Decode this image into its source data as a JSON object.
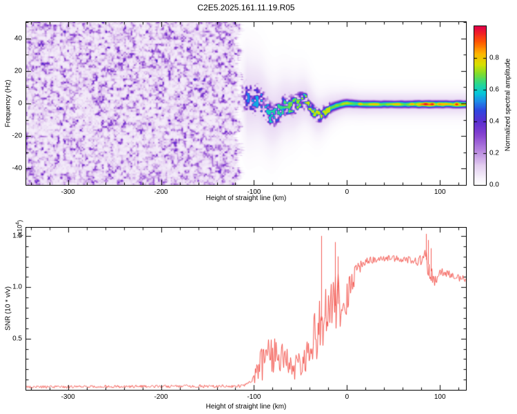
{
  "title": "C2E5.2025.161.11.19.R05",
  "background_color": "#ffffff",
  "chart_data": [
    {
      "type": "heatmap",
      "panel": "spectrogram",
      "xlabel": "Height of straight line (km)",
      "ylabel": "Frequency (Hz)",
      "xlim": [
        -345,
        128
      ],
      "ylim": [
        -50,
        50
      ],
      "xticks": [
        -300,
        -200,
        -100,
        0,
        100
      ],
      "yticks": [
        -40,
        -20,
        0,
        20,
        40
      ],
      "x_minor_step": 20,
      "y_minor_step": 10,
      "colorbar": {
        "label": "Normalized spectral amplitude",
        "ticks": [
          0.0,
          0.2,
          0.4,
          0.6,
          0.8
        ],
        "range": [
          0,
          1
        ]
      },
      "colormap": [
        [
          0.0,
          "#ffffff"
        ],
        [
          0.04,
          "#f7f2fb"
        ],
        [
          0.12,
          "#e3cdf0"
        ],
        [
          0.22,
          "#b482de"
        ],
        [
          0.32,
          "#8440cf"
        ],
        [
          0.4,
          "#5a2fd0"
        ],
        [
          0.47,
          "#2f48e0"
        ],
        [
          0.53,
          "#1e8fe8"
        ],
        [
          0.58,
          "#06c8d8"
        ],
        [
          0.64,
          "#2bd88c"
        ],
        [
          0.7,
          "#7fdc2e"
        ],
        [
          0.76,
          "#d8e000"
        ],
        [
          0.83,
          "#ffb300"
        ],
        [
          0.9,
          "#ff5a00"
        ],
        [
          0.96,
          "#f01e28"
        ],
        [
          1.0,
          "#e00048"
        ]
      ],
      "noise_region": {
        "x_start": -345,
        "x_end": -113,
        "background_level": 0.05,
        "speckle_peak": 0.45
      },
      "signal_band": {
        "x_start": -113,
        "x_end": 128,
        "center_hz": -0.5,
        "wander_amplitude_hz": 5,
        "width_hz_wide": 8,
        "width_hz_narrow": 2.2,
        "tighten_at_x": -20,
        "amplitude_min": 0.5,
        "amplitude_plateau": 0.75,
        "hotspots": [
          {
            "x": 2,
            "boost": 0.08,
            "sigma": 5
          },
          {
            "x": 55,
            "boost": 0.05,
            "sigma": 6
          },
          {
            "x": 85,
            "boost": 0.18,
            "sigma": 16
          },
          {
            "x": 120,
            "boost": 0.13,
            "sigma": 8
          }
        ]
      }
    },
    {
      "type": "line",
      "panel": "snr",
      "xlabel": "Height of straight line (km)",
      "ylabel": "SNR (10 * v/v)",
      "scale_prefix": "(x10",
      "scale_exponent": "4",
      "scale_suffix": ")",
      "xlim": [
        -345,
        128
      ],
      "ylim": [
        0,
        1.58
      ],
      "xticks": [
        -300,
        -200,
        -100,
        0,
        100
      ],
      "yticks": [
        0.5,
        1.0,
        1.5
      ],
      "x_minor_step": 20,
      "y_minor_step": 0.1,
      "color": "#f2473f",
      "envelope": [
        [
          -345,
          0.015,
          0.04
        ],
        [
          -200,
          0.02,
          0.05
        ],
        [
          -150,
          0.02,
          0.05
        ],
        [
          -120,
          0.02,
          0.05
        ],
        [
          -110,
          0.02,
          0.06
        ],
        [
          -104,
          0.03,
          0.09
        ],
        [
          -100,
          0.04,
          0.18
        ],
        [
          -96,
          0.05,
          0.3
        ],
        [
          -92,
          0.08,
          0.5
        ],
        [
          -88,
          0.1,
          0.45
        ],
        [
          -84,
          0.12,
          0.55
        ],
        [
          -80,
          0.12,
          0.5
        ],
        [
          -76,
          0.15,
          0.55
        ],
        [
          -72,
          0.12,
          0.5
        ],
        [
          -68,
          0.1,
          0.45
        ],
        [
          -64,
          0.1,
          0.42
        ],
        [
          -60,
          0.1,
          0.38
        ],
        [
          -56,
          0.1,
          0.34
        ],
        [
          -52,
          0.12,
          0.36
        ],
        [
          -48,
          0.15,
          0.4
        ],
        [
          -44,
          0.18,
          0.45
        ],
        [
          -40,
          0.2,
          0.55
        ],
        [
          -36,
          0.25,
          0.7
        ],
        [
          -32,
          0.3,
          0.85
        ],
        [
          -28,
          0.35,
          1.0
        ],
        [
          -24,
          0.4,
          1.0
        ],
        [
          -20,
          0.45,
          1.05
        ],
        [
          -16,
          0.5,
          1.1
        ],
        [
          -12,
          0.5,
          1.15
        ],
        [
          -8,
          0.55,
          1.15
        ],
        [
          -4,
          0.6,
          1.1
        ],
        [
          0,
          0.7,
          1.15
        ],
        [
          4,
          0.9,
          1.18
        ],
        [
          8,
          1.0,
          1.2
        ],
        [
          12,
          1.1,
          1.24
        ],
        [
          16,
          1.17,
          1.27
        ],
        [
          20,
          1.2,
          1.29
        ],
        [
          26,
          1.23,
          1.3
        ],
        [
          34,
          1.24,
          1.31
        ],
        [
          42,
          1.25,
          1.31
        ],
        [
          50,
          1.25,
          1.32
        ],
        [
          58,
          1.24,
          1.31
        ],
        [
          66,
          1.23,
          1.3
        ],
        [
          74,
          1.21,
          1.29
        ],
        [
          80,
          1.2,
          1.33
        ],
        [
          84,
          1.18,
          1.4
        ],
        [
          88,
          1.1,
          1.3
        ],
        [
          92,
          1.02,
          1.2
        ],
        [
          96,
          1.0,
          1.14
        ],
        [
          100,
          1.08,
          1.2
        ],
        [
          105,
          1.1,
          1.18
        ],
        [
          110,
          1.08,
          1.16
        ],
        [
          115,
          1.07,
          1.14
        ],
        [
          120,
          1.06,
          1.13
        ],
        [
          125,
          1.05,
          1.12
        ],
        [
          128,
          1.04,
          1.11
        ]
      ],
      "spikes": [
        [
          -28,
          1.5
        ],
        [
          -13,
          1.44
        ],
        [
          -10,
          1.3
        ],
        [
          85,
          1.52
        ],
        [
          87,
          1.46
        ],
        [
          90,
          1.38
        ]
      ]
    }
  ]
}
